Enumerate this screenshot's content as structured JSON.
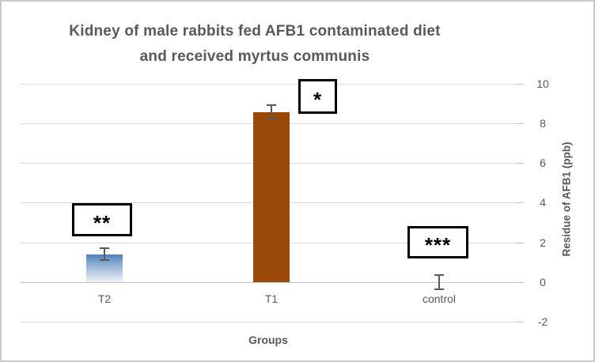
{
  "chart_data": {
    "type": "bar",
    "title": "Kidney of male rabbits fed AFB1 contaminated diet and received myrtus communis",
    "title_lines": [
      "Kidney of male rabbits fed AFB1 contaminated diet",
      "and received myrtus communis"
    ],
    "categories": [
      "T2",
      "T1",
      "control"
    ],
    "values": [
      1.4,
      8.55,
      0
    ],
    "error_bars": [
      0.3,
      0.35,
      0.35
    ],
    "significance_labels": [
      "**",
      "*",
      "***"
    ],
    "xlabel": "Groups",
    "ylabel": "Residue of AFB1 (ppb)",
    "ylim": [
      -2,
      10
    ],
    "yticks": [
      10,
      8,
      6,
      4,
      2,
      0,
      -2
    ],
    "grid": true,
    "y_axis_side": "right",
    "legend": "none",
    "bar_fills": [
      {
        "category": "T2",
        "type": "gradient",
        "from": "#5080ba",
        "mid": "#9db8d8",
        "to": "#eef3f9"
      },
      {
        "category": "T1",
        "type": "solid",
        "color": "#9a4a08"
      },
      {
        "category": "control",
        "type": "none"
      }
    ],
    "colors": {
      "title_text": "#595959",
      "axis_text": "#595959",
      "gridline": "#d9d9d9",
      "zero_line": "#c4c4c4",
      "tick": "#bfbfbf",
      "error_bar": "#595959",
      "annotation_border": "#000000",
      "annotation_bg": "#ffffff",
      "background": "#ffffff",
      "frame_border": "#c9c9c9"
    }
  }
}
